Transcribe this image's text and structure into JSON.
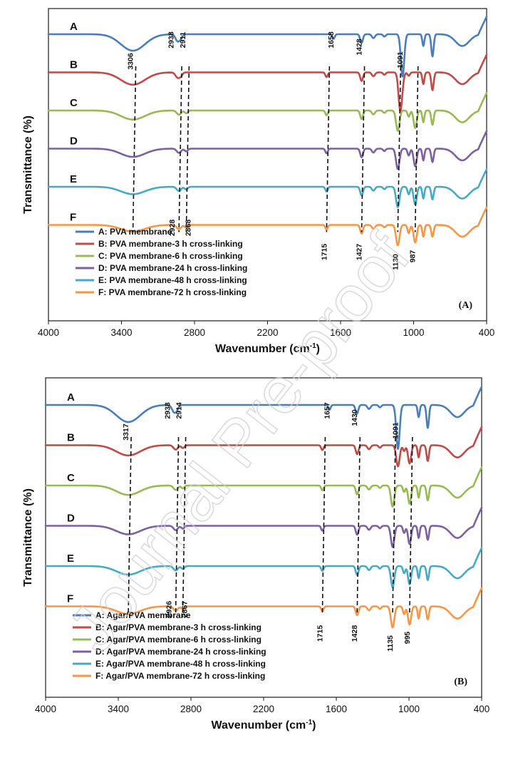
{
  "watermark": "Journal Pre-proof",
  "chart_data": [
    {
      "type": "line",
      "panel_label": "(A)",
      "xlabel": "Wavenumber (cm",
      "xlabel_superscript": "-1",
      "xlabel_suffix": ")",
      "ylabel": "Transmittance (%)",
      "xlim": [
        4000,
        400
      ],
      "x_reversed": true,
      "xticks": [
        4000,
        3400,
        2800,
        2200,
        1600,
        1000,
        400
      ],
      "yticks": [],
      "legend_position": "bottom-left",
      "series": [
        {
          "letter": "A",
          "name": "A: PVA membrane",
          "color": "#4a7ebb",
          "offset": 0,
          "scale": 1.0,
          "peaks": {
            "oh": 3306,
            "ch1": 2938,
            "ch2": 2911,
            "co": 1658,
            "ch_bend": 1428,
            "cc": 1091,
            "cc2": 1091
          }
        },
        {
          "letter": "B",
          "name": "B: PVA membrane-3 h cross-linking",
          "color": "#be4b48",
          "offset": 1,
          "scale": 0.75,
          "peaks": {
            "oh": 3306,
            "ch1": 2938,
            "ch2": 2911,
            "co": 1715,
            "ch_bend": 1427,
            "cc": 1110,
            "cc2": 1091
          }
        },
        {
          "letter": "C",
          "name": "C: PVA membrane-6 h cross-linking",
          "color": "#98b954",
          "offset": 2,
          "scale": 0.55,
          "peaks": {
            "oh": 3306,
            "ch1": 2928,
            "ch2": 2868,
            "co": 1715,
            "ch_bend": 1427,
            "cc": 1130,
            "cc2": 987
          }
        },
        {
          "letter": "D",
          "name": "D: PVA membrane-24 h cross-linking",
          "color": "#7d60a0",
          "offset": 3,
          "scale": 0.5,
          "peaks": {
            "oh": 3306,
            "ch1": 2928,
            "ch2": 2868,
            "co": 1715,
            "ch_bend": 1427,
            "cc": 1130,
            "cc2": 987
          }
        },
        {
          "letter": "E",
          "name": "E: PVA membrane-48 h cross-linking",
          "color": "#46aac5",
          "offset": 4,
          "scale": 0.45,
          "peaks": {
            "oh": 3306,
            "ch1": 2928,
            "ch2": 2868,
            "co": 1715,
            "ch_bend": 1427,
            "cc": 1130,
            "cc2": 987
          }
        },
        {
          "letter": "F",
          "name": "F: PVA membrane-72 h cross-linking",
          "color": "#f79646",
          "offset": 5,
          "scale": 0.4,
          "peaks": {
            "oh": 3306,
            "ch1": 2928,
            "ch2": 2868,
            "co": 1715,
            "ch_bend": 1427,
            "cc": 1130,
            "cc2": 987
          }
        }
      ],
      "annotations": [
        {
          "label": "3306",
          "wavenumber": 3306,
          "position": "top"
        },
        {
          "label": "2938",
          "wavenumber": 2938,
          "position": "top"
        },
        {
          "label": "2911",
          "wavenumber": 2911,
          "position": "top"
        },
        {
          "label": "1658",
          "wavenumber": 1658,
          "position": "top"
        },
        {
          "label": "1428",
          "wavenumber": 1428,
          "position": "top"
        },
        {
          "label": "1091",
          "wavenumber": 1091,
          "position": "top"
        },
        {
          "label": "2928",
          "wavenumber": 2928,
          "position": "bottom"
        },
        {
          "label": "2868",
          "wavenumber": 2868,
          "position": "bottom"
        },
        {
          "label": "1715",
          "wavenumber": 1715,
          "position": "bottom"
        },
        {
          "label": "1427",
          "wavenumber": 1427,
          "position": "bottom"
        },
        {
          "label": "1130",
          "wavenumber": 1130,
          "position": "bottom"
        },
        {
          "label": "987",
          "wavenumber": 987,
          "position": "bottom"
        }
      ],
      "guide_lines": [
        3306,
        2928,
        2868,
        1715,
        1427,
        1130,
        987
      ]
    },
    {
      "type": "line",
      "panel_label": "(B)",
      "xlabel": "Wavenumber (cm",
      "xlabel_superscript": "-1",
      "xlabel_suffix": ")",
      "ylabel": "Transmittance (%)",
      "xlim": [
        4000,
        400
      ],
      "x_reversed": true,
      "xticks": [
        4000,
        3400,
        2800,
        2200,
        1600,
        1000,
        400
      ],
      "yticks": [],
      "legend_position": "bottom-left",
      "series": [
        {
          "letter": "A",
          "name": "A: Agar/PVA membrane",
          "color": "#4a7ebb",
          "offset": 0,
          "scale": 1.0,
          "peaks": {
            "oh": 3317,
            "ch1": 2938,
            "ch2": 2914,
            "co": 1657,
            "ch_bend": 1430,
            "cc": 1091,
            "cc2": 1091
          }
        },
        {
          "letter": "B",
          "name": "B: Agar/PVA membrane-3 h cross-linking",
          "color": "#be4b48",
          "offset": 1,
          "scale": 0.6,
          "peaks": {
            "oh": 3317,
            "ch1": 2926,
            "ch2": 2867,
            "co": 1715,
            "ch_bend": 1428,
            "cc": 1091,
            "cc2": 995
          }
        },
        {
          "letter": "C",
          "name": "C: Agar/PVA membrane-6 h cross-linking",
          "color": "#98b954",
          "offset": 2,
          "scale": 0.55,
          "peaks": {
            "oh": 3317,
            "ch1": 2926,
            "ch2": 2867,
            "co": 1715,
            "ch_bend": 1428,
            "cc": 1135,
            "cc2": 995
          }
        },
        {
          "letter": "D",
          "name": "D: Agar/PVA membrane-24 h cross-linking",
          "color": "#7d60a0",
          "offset": 3,
          "scale": 0.5,
          "peaks": {
            "oh": 3317,
            "ch1": 2926,
            "ch2": 2867,
            "co": 1715,
            "ch_bend": 1428,
            "cc": 1135,
            "cc2": 995
          }
        },
        {
          "letter": "E",
          "name": "E: Agar/PVA membrane-48 h cross-linking",
          "color": "#46aac5",
          "offset": 4,
          "scale": 0.5,
          "peaks": {
            "oh": 3317,
            "ch1": 2926,
            "ch2": 2867,
            "co": 1715,
            "ch_bend": 1428,
            "cc": 1135,
            "cc2": 995
          }
        },
        {
          "letter": "F",
          "name": "F: Agar/PVA membrane-72 h cross-linking",
          "color": "#f79646",
          "offset": 5,
          "scale": 0.45,
          "peaks": {
            "oh": 3317,
            "ch1": 2926,
            "ch2": 2867,
            "co": 1715,
            "ch_bend": 1428,
            "cc": 1135,
            "cc2": 995
          }
        }
      ],
      "annotations": [
        {
          "label": "3317",
          "wavenumber": 3317,
          "position": "top"
        },
        {
          "label": "2938",
          "wavenumber": 2938,
          "position": "top"
        },
        {
          "label": "2914",
          "wavenumber": 2914,
          "position": "top"
        },
        {
          "label": "1657",
          "wavenumber": 1657,
          "position": "top"
        },
        {
          "label": "1430",
          "wavenumber": 1430,
          "position": "top"
        },
        {
          "label": "1091",
          "wavenumber": 1091,
          "position": "top"
        },
        {
          "label": "2926",
          "wavenumber": 2926,
          "position": "bottom"
        },
        {
          "label": "2867",
          "wavenumber": 2867,
          "position": "bottom"
        },
        {
          "label": "1715",
          "wavenumber": 1715,
          "position": "bottom"
        },
        {
          "label": "1428",
          "wavenumber": 1428,
          "position": "bottom"
        },
        {
          "label": "1135",
          "wavenumber": 1135,
          "position": "bottom"
        },
        {
          "label": "995",
          "wavenumber": 995,
          "position": "bottom"
        }
      ],
      "guide_lines": [
        3317,
        2926,
        2867,
        1715,
        1428,
        1135,
        995
      ]
    }
  ]
}
